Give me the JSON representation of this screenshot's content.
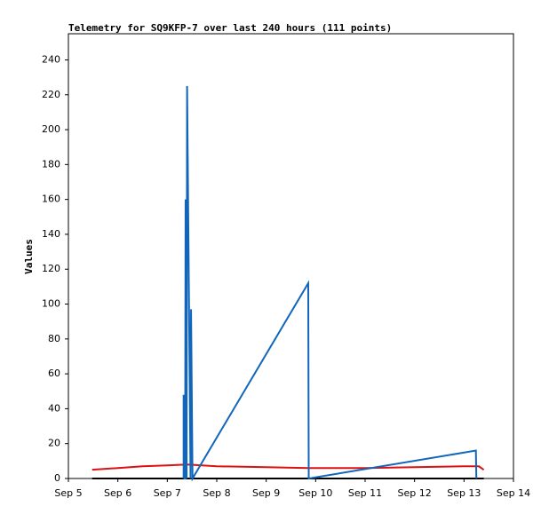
{
  "chart_data": {
    "type": "line",
    "title": "Telemetry for SQ9KFP-7 over last 240 hours (111 points)",
    "y_label": "Values",
    "xlim": [
      5,
      14
    ],
    "xticks": [
      {
        "value": 5,
        "label": "Sep 5"
      },
      {
        "value": 6,
        "label": "Sep 6"
      },
      {
        "value": 7,
        "label": "Sep 7"
      },
      {
        "value": 8,
        "label": "Sep 8"
      },
      {
        "value": 9,
        "label": "Sep 9"
      },
      {
        "value": 10,
        "label": "Sep 10"
      },
      {
        "value": 11,
        "label": "Sep 11"
      },
      {
        "value": 12,
        "label": "Sep 12"
      },
      {
        "value": 13,
        "label": "Sep 13"
      },
      {
        "value": 14,
        "label": "Sep 14"
      }
    ],
    "ylim": [
      0,
      255
    ],
    "yticks": [
      0,
      20,
      40,
      60,
      80,
      100,
      120,
      140,
      160,
      180,
      200,
      220,
      240
    ],
    "grid": false,
    "series": [
      {
        "color": "#000000",
        "x": [
          5.48,
          13.4
        ],
        "values": [
          0,
          0
        ]
      },
      {
        "color": "#dd1111",
        "x": [
          5.48,
          6,
          6.5,
          7,
          7.4,
          8,
          9,
          9.85,
          10,
          11,
          12,
          13,
          13.3,
          13.4
        ],
        "values": [
          5,
          6,
          7,
          7.5,
          8,
          7,
          6.5,
          6,
          6,
          6,
          6.5,
          7,
          7,
          5
        ]
      },
      {
        "color": "#1166bb",
        "x": [
          7.33,
          7.33,
          7.35,
          7.36,
          7.37,
          7.39,
          7.4,
          7.47,
          7.48,
          7.51,
          9.85,
          9.86,
          13.24,
          13.25
        ],
        "values": [
          0,
          48,
          0,
          0,
          160,
          0,
          225,
          0,
          97,
          0,
          112,
          0,
          16,
          0
        ]
      }
    ]
  }
}
